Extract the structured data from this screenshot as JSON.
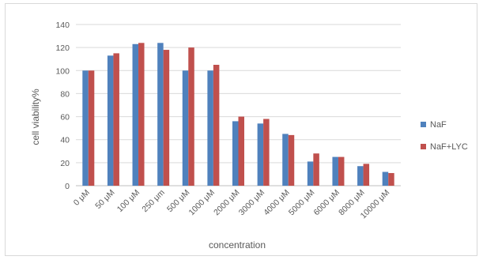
{
  "chart_data": {
    "type": "bar",
    "title": "",
    "xlabel": "concentration",
    "ylabel": "cell viability%",
    "ylim": [
      0,
      140
    ],
    "yticks": [
      0,
      20,
      40,
      60,
      80,
      100,
      120,
      140
    ],
    "grid": true,
    "legend_position": "right",
    "categories": [
      "0 μM",
      "50 μM",
      "100 μM",
      "250 μm",
      "500 μM",
      "1000 μM",
      "2000 μM",
      "3000 μM",
      "4000 μM",
      "5000 μM",
      "6000 μM",
      "8000 μM",
      "10000 μM"
    ],
    "series": [
      {
        "name": "NaF",
        "color": "#4f81bd",
        "values": [
          100,
          113,
          123,
          124,
          100,
          100,
          56,
          54,
          45,
          21,
          25,
          17,
          12
        ]
      },
      {
        "name": "NaF+LYC",
        "color": "#c0504d",
        "values": [
          100,
          115,
          124,
          118,
          120,
          105,
          60,
          58,
          44,
          28,
          25,
          19,
          11
        ]
      }
    ]
  }
}
